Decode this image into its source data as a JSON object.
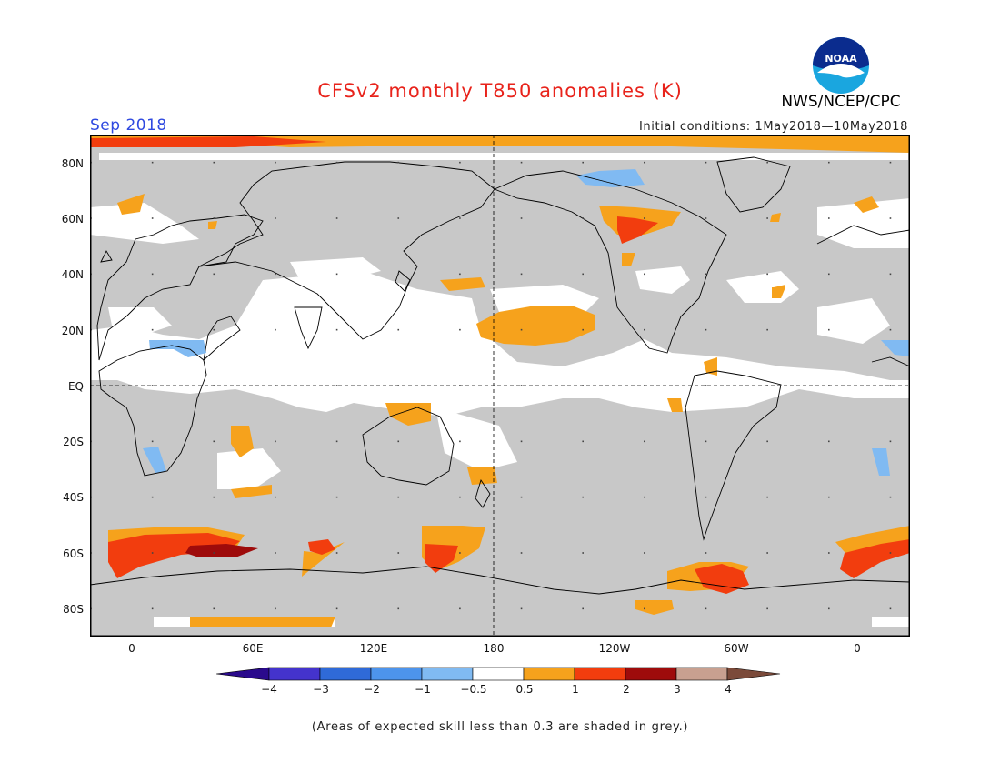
{
  "title": "CFSv2 monthly T850 anomalies (K)",
  "valid_month": "Sep 2018",
  "initial_conditions": "Initial conditions: 1May2018—10May2018",
  "agency": "NWS/NCEP/CPC",
  "logo_text": "NOAA",
  "lat_labels": [
    "80N",
    "60N",
    "40N",
    "20N",
    "EQ",
    "20S",
    "40S",
    "60S",
    "80S"
  ],
  "lon_labels": [
    "0",
    "60E",
    "120E",
    "180",
    "120W",
    "60W",
    "0"
  ],
  "colorbar": {
    "labels": [
      "−4",
      "−3",
      "−2",
      "−1",
      "−0.5",
      "0.5",
      "1",
      "2",
      "3",
      "4"
    ],
    "colors": [
      "#2a0a8c",
      "#4433cc",
      "#2f6ad8",
      "#4d94ec",
      "#80baf2",
      "#ffffff",
      "#f6a21c",
      "#f23d0e",
      "#9e0b0b",
      "#c8a090",
      "#7b4a3a"
    ]
  },
  "skill_note": "(Areas of expected skill less than 0.3 are shaded in grey.)",
  "colors": {
    "title": "#e8231b",
    "month": "#2f49e0",
    "low_skill_grey": "#c8c8c8",
    "anomaly_0_5_to_1": "#f6a21c",
    "anomaly_1_to_2": "#f23d0e",
    "anomaly_2_to_3": "#9e0b0b",
    "anomaly_neg_0_5_to_neg_1": "#80baf2"
  }
}
